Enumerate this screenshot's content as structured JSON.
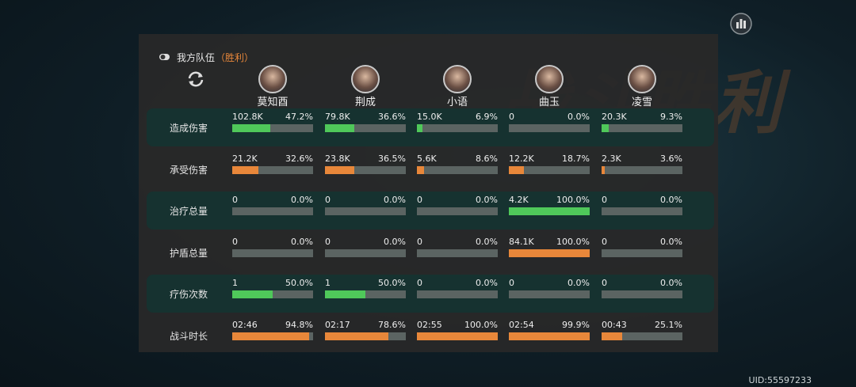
{
  "background_title": "战斗胜利",
  "header": {
    "title": "我方队伍",
    "result": "（胜利）"
  },
  "players": [
    "莫知酉",
    "荆成",
    "小语",
    "曲玉",
    "凌雪"
  ],
  "rows": [
    {
      "label": "造成伤害",
      "color": "#4fc85a",
      "cells": [
        {
          "value": "102.8K",
          "percent": 47.2,
          "percent_label": "47.2%"
        },
        {
          "value": "79.8K",
          "percent": 36.6,
          "percent_label": "36.6%"
        },
        {
          "value": "15.0K",
          "percent": 6.9,
          "percent_label": "6.9%"
        },
        {
          "value": "0",
          "percent": 0,
          "percent_label": "0.0%"
        },
        {
          "value": "20.3K",
          "percent": 9.3,
          "percent_label": "9.3%"
        }
      ]
    },
    {
      "label": "承受伤害",
      "color": "#e8873a",
      "cells": [
        {
          "value": "21.2K",
          "percent": 32.6,
          "percent_label": "32.6%"
        },
        {
          "value": "23.8K",
          "percent": 36.5,
          "percent_label": "36.5%"
        },
        {
          "value": "5.6K",
          "percent": 8.6,
          "percent_label": "8.6%"
        },
        {
          "value": "12.2K",
          "percent": 18.7,
          "percent_label": "18.7%"
        },
        {
          "value": "2.3K",
          "percent": 3.6,
          "percent_label": "3.6%"
        }
      ]
    },
    {
      "label": "治疗总量",
      "color": "#4fc85a",
      "cells": [
        {
          "value": "0",
          "percent": 0,
          "percent_label": "0.0%"
        },
        {
          "value": "0",
          "percent": 0,
          "percent_label": "0.0%"
        },
        {
          "value": "0",
          "percent": 0,
          "percent_label": "0.0%"
        },
        {
          "value": "4.2K",
          "percent": 100.0,
          "percent_label": "100.0%"
        },
        {
          "value": "0",
          "percent": 0,
          "percent_label": "0.0%"
        }
      ]
    },
    {
      "label": "护盾总量",
      "color": "#e8873a",
      "cells": [
        {
          "value": "0",
          "percent": 0,
          "percent_label": "0.0%"
        },
        {
          "value": "0",
          "percent": 0,
          "percent_label": "0.0%"
        },
        {
          "value": "0",
          "percent": 0,
          "percent_label": "0.0%"
        },
        {
          "value": "84.1K",
          "percent": 100.0,
          "percent_label": "100.0%"
        },
        {
          "value": "0",
          "percent": 0,
          "percent_label": "0.0%"
        }
      ]
    },
    {
      "label": "疗伤次数",
      "color": "#4fc85a",
      "cells": [
        {
          "value": "1",
          "percent": 50.0,
          "percent_label": "50.0%"
        },
        {
          "value": "1",
          "percent": 50.0,
          "percent_label": "50.0%"
        },
        {
          "value": "0",
          "percent": 0,
          "percent_label": "0.0%"
        },
        {
          "value": "0",
          "percent": 0,
          "percent_label": "0.0%"
        },
        {
          "value": "0",
          "percent": 0,
          "percent_label": "0.0%"
        }
      ]
    },
    {
      "label": "战斗时长",
      "color": "#e8873a",
      "cells": [
        {
          "value": "02:46",
          "percent": 94.8,
          "percent_label": "94.8%"
        },
        {
          "value": "02:17",
          "percent": 78.6,
          "percent_label": "78.6%"
        },
        {
          "value": "02:55",
          "percent": 100.0,
          "percent_label": "100.0%"
        },
        {
          "value": "02:54",
          "percent": 99.9,
          "percent_label": "99.9%"
        },
        {
          "value": "00:43",
          "percent": 25.1,
          "percent_label": "25.1%"
        }
      ]
    }
  ],
  "uid": "UID:55597233"
}
